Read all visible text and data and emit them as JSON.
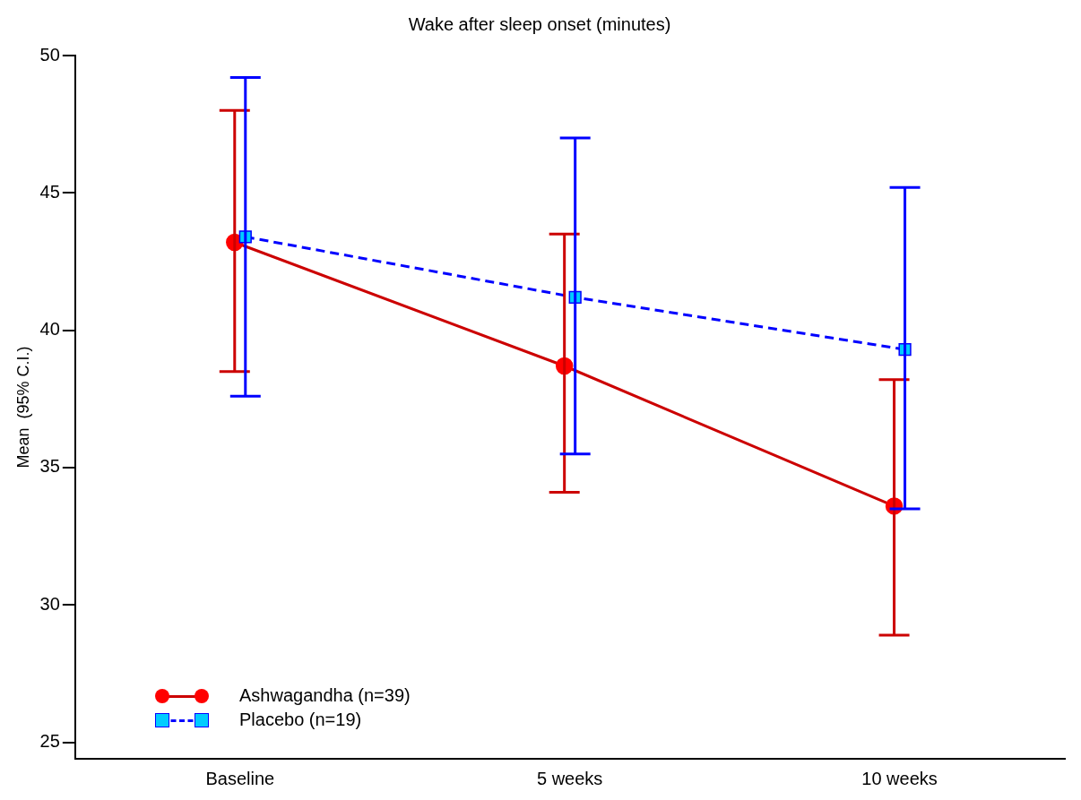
{
  "chart_data": {
    "type": "line",
    "title": "Wake after sleep onset (minutes)",
    "ylabel": "Mean  (95% C.I.)",
    "categories": [
      "Baseline",
      "5 weeks",
      "10 weeks"
    ],
    "series": [
      {
        "name": "Ashwagandha (n=39)",
        "color": "#cc0000",
        "colors": [
          "#ff0000",
          "#ff0000",
          "#ff0000"
        ],
        "marker": "circle",
        "line_style": "solid",
        "values": [
          43.2,
          38.7,
          33.6
        ],
        "errors": [
          [
            38.5,
            48.0
          ],
          [
            34.1,
            43.5
          ],
          [
            28.9,
            38.2
          ]
        ]
      },
      {
        "name": "Placebo (n=19)",
        "color": "#0000ff",
        "colors": [
          "#00ccff",
          "#00ccff",
          "#00ccff"
        ],
        "marker": "square",
        "line_style": "dashed",
        "values": [
          43.4,
          41.2,
          39.3
        ],
        "errors": [
          [
            37.6,
            49.2
          ],
          [
            35.5,
            47.0
          ],
          [
            33.5,
            45.2
          ]
        ]
      }
    ],
    "ylim": [
      24.4,
      50
    ],
    "yticks": [
      25,
      30,
      35,
      40,
      45,
      50
    ],
    "grid": false,
    "legend": "bottom left"
  }
}
